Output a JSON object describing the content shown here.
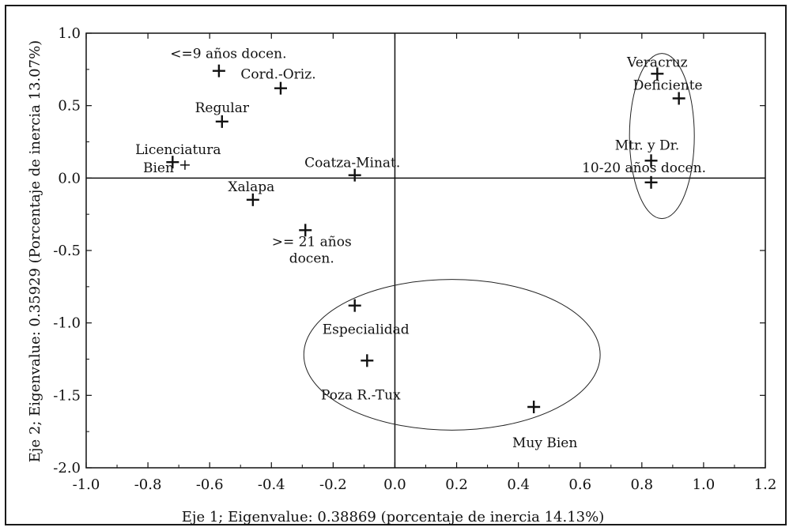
{
  "chart_data": {
    "type": "scatter",
    "xlabel": "Eje 1; Eigenvalue: 0.38869 (porcentaje de inercia 14.13%)",
    "ylabel": "Eje 2; Eigenvalue: 0.35929 (Porcentaje de inercia 13.07%)",
    "xlim": [
      -1.0,
      1.2
    ],
    "ylim": [
      -2.0,
      1.0
    ],
    "x_ticks": [
      "-1.0",
      "-0.8",
      "-0.6",
      "-0.4",
      "-0.2",
      "0.0",
      "0.2",
      "0.4",
      "0.6",
      "0.8",
      "1.0",
      "1.2"
    ],
    "y_ticks": [
      "1.0",
      "0.5",
      "0.0",
      "-0.5",
      "-1.0",
      "-1.5",
      "-2.0"
    ],
    "grid": false,
    "reference_lines": {
      "x": 0,
      "y": 0
    },
    "points": [
      {
        "label": "<=9 años docen.",
        "x": -0.57,
        "y": 0.74
      },
      {
        "label": "Cord.-Oriz.",
        "x": -0.37,
        "y": 0.62
      },
      {
        "label": "Regular",
        "x": -0.56,
        "y": 0.39
      },
      {
        "label": "Licenciatura",
        "x": -0.72,
        "y": 0.11
      },
      {
        "label": "Bien",
        "x": -0.68,
        "y": 0.09
      },
      {
        "label": "Coatza-Minat.",
        "x": -0.13,
        "y": 0.02
      },
      {
        "label": "Xalapa",
        "x": -0.46,
        "y": -0.15
      },
      {
        "label": ">= 21 años docen.",
        "x": -0.29,
        "y": -0.36
      },
      {
        "label": "Especialidad",
        "x": -0.13,
        "y": -0.88
      },
      {
        "label": "Poza R.-Tux",
        "x": -0.09,
        "y": -1.26
      },
      {
        "label": "Muy Bien",
        "x": 0.45,
        "y": -1.58
      },
      {
        "label": "Veracruz",
        "x": 0.85,
        "y": 0.72
      },
      {
        "label": "Deficiente",
        "x": 0.92,
        "y": 0.55
      },
      {
        "label": "Mtr. y Dr.",
        "x": 0.83,
        "y": 0.12
      },
      {
        "label": "10-20 años docen.",
        "x": 0.83,
        "y": -0.03
      }
    ],
    "groupings": [
      {
        "name": "right-cluster",
        "cx": 0.865,
        "cy": 0.29,
        "rx": 0.105,
        "ry": 0.57
      },
      {
        "name": "bottom-cluster",
        "cx": 0.185,
        "cy": -1.22,
        "rx": 0.48,
        "ry": 0.52
      }
    ]
  }
}
